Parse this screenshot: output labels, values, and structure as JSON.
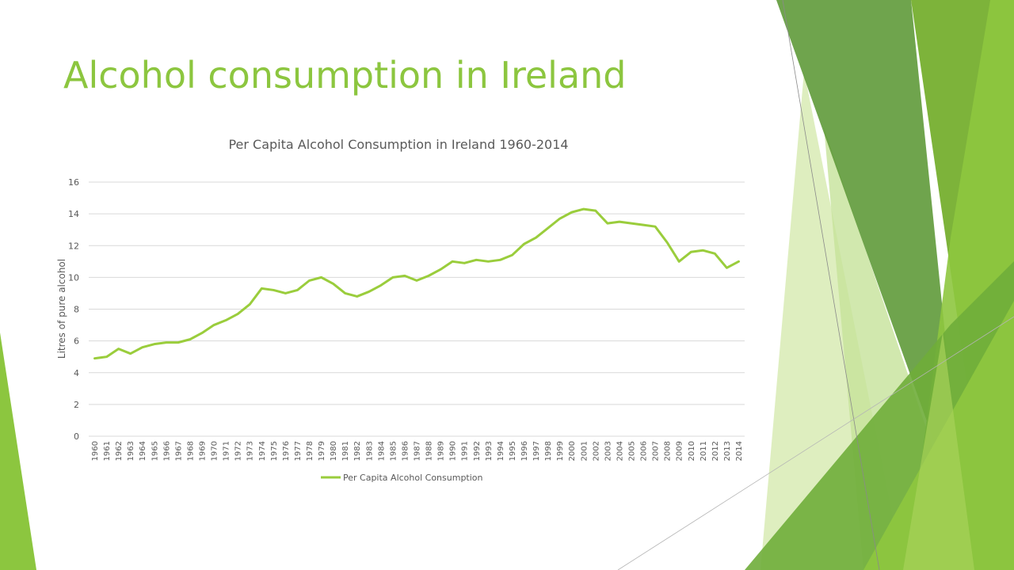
{
  "slide": {
    "title": "Alcohol consumption in Ireland"
  },
  "theme": {
    "accent": "#8cc63f",
    "line_color": "#9acd3c",
    "text_color": "#595959",
    "grid_color": "#d9d9d9"
  },
  "chart_data": {
    "type": "line",
    "title": "Per Capita Alcohol Consumption in Ireland 1960-2014",
    "xlabel": "",
    "ylabel": "Litres of pure alcohol",
    "ylim": [
      0,
      16
    ],
    "yticks": [
      0,
      2,
      4,
      6,
      8,
      10,
      12,
      14,
      16
    ],
    "grid": true,
    "legend_position": "bottom",
    "x": [
      1960,
      1961,
      1962,
      1963,
      1964,
      1965,
      1966,
      1967,
      1968,
      1969,
      1970,
      1971,
      1972,
      1973,
      1974,
      1975,
      1976,
      1977,
      1978,
      1979,
      1980,
      1981,
      1982,
      1983,
      1984,
      1985,
      1986,
      1987,
      1988,
      1989,
      1990,
      1991,
      1992,
      1993,
      1994,
      1995,
      1996,
      1997,
      1998,
      1999,
      2000,
      2001,
      2002,
      2003,
      2004,
      2005,
      2006,
      2007,
      2008,
      2009,
      2010,
      2011,
      2012,
      2013,
      2014
    ],
    "series": [
      {
        "name": "Per Capita Alcohol Consumption",
        "values": [
          4.9,
          5.0,
          5.5,
          5.2,
          5.6,
          5.8,
          5.9,
          5.9,
          6.1,
          6.5,
          7.0,
          7.3,
          7.7,
          8.3,
          9.3,
          9.2,
          9.0,
          9.2,
          9.8,
          10.0,
          9.6,
          9.0,
          8.8,
          9.1,
          9.5,
          10.0,
          10.1,
          9.8,
          10.1,
          10.5,
          11.0,
          10.9,
          11.1,
          11.0,
          11.1,
          11.4,
          12.1,
          12.5,
          13.1,
          13.7,
          14.1,
          14.3,
          14.2,
          13.4,
          13.5,
          13.4,
          13.3,
          13.2,
          12.2,
          11.0,
          11.6,
          11.7,
          11.5,
          10.6,
          11.0
        ]
      }
    ]
  }
}
